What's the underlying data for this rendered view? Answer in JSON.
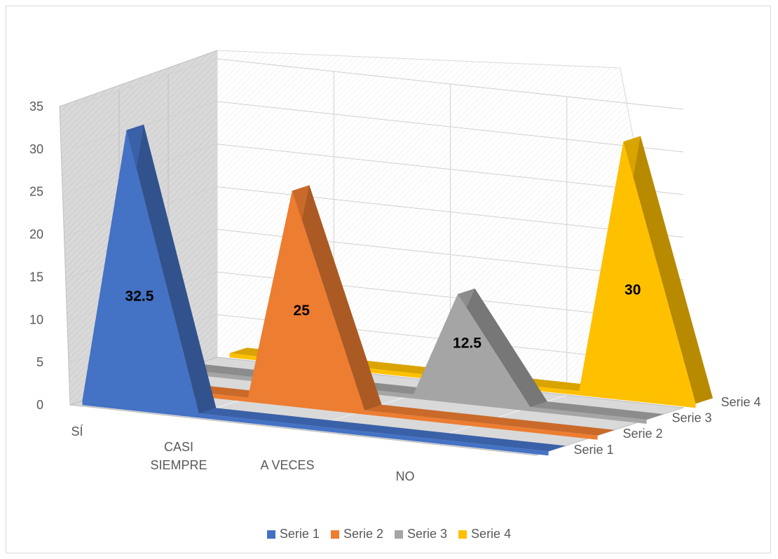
{
  "chart_data": {
    "type": "3d-pyramid",
    "categories": [
      "SÍ",
      "CASI SIEMPRE",
      "A VECES",
      "NO"
    ],
    "category_lines": [
      [
        "SÍ"
      ],
      [
        "CASI",
        "SIEMPRE"
      ],
      [
        "A VECES"
      ],
      [
        "NO"
      ]
    ],
    "series": [
      {
        "name": "Serie 1",
        "color": "#4472C4",
        "values": [
          32.5,
          0,
          0,
          0
        ]
      },
      {
        "name": "Serie 2",
        "color": "#ED7D31",
        "values": [
          0,
          25,
          0,
          0
        ]
      },
      {
        "name": "Serie 3",
        "color": "#A5A5A5",
        "values": [
          0,
          0,
          12.5,
          0
        ]
      },
      {
        "name": "Serie 4",
        "color": "#FFC000",
        "values": [
          0,
          0,
          0,
          30
        ]
      }
    ],
    "data_labels": [
      "32.5",
      "25",
      "12.5",
      "30"
    ],
    "yticks": [
      "0",
      "5",
      "10",
      "15",
      "20",
      "25",
      "30",
      "35"
    ],
    "ylim": [
      0,
      35
    ],
    "grid": true,
    "legend_position": "bottom"
  }
}
